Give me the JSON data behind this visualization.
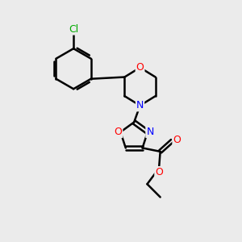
{
  "background_color": "#ebebeb",
  "bond_color": "#000000",
  "atom_colors": {
    "O": "#ff0000",
    "N": "#0000ff",
    "Cl": "#00aa00",
    "C": "#000000"
  },
  "figsize": [
    3.0,
    3.0
  ],
  "dpi": 100
}
